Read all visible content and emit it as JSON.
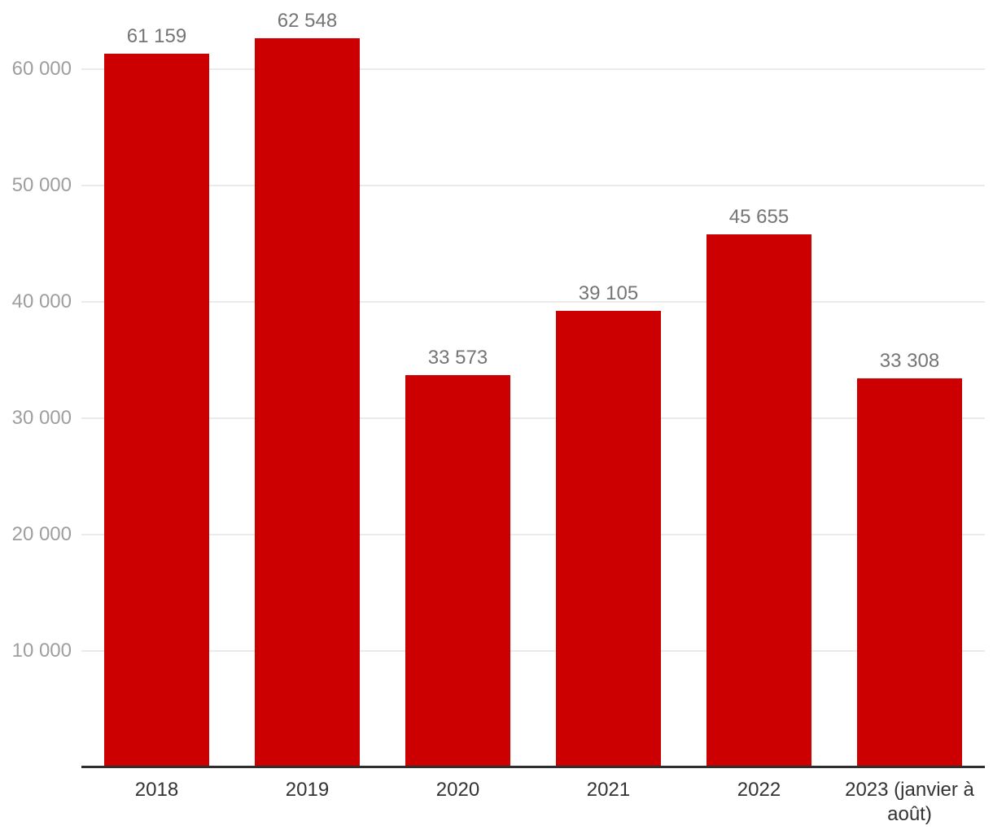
{
  "chart_data": {
    "type": "bar",
    "title": "",
    "categories": [
      "2018",
      "2019",
      "2020",
      "2021",
      "2022",
      "2023 (janvier à août)"
    ],
    "values": [
      61159,
      62548,
      33573,
      39105,
      45655,
      33308
    ],
    "value_labels": [
      "61 159",
      "62 548",
      "33 573",
      "39 105",
      "45 655",
      "33 308"
    ],
    "series_name": "",
    "xlabel": "",
    "ylabel": "",
    "y_ticks": [
      10000,
      20000,
      30000,
      40000,
      50000,
      60000
    ],
    "y_tick_labels": [
      "10 000",
      "20 000",
      "30 000",
      "40 000",
      "50 000",
      "60 000"
    ],
    "ylim": [
      0,
      66000
    ],
    "grid": "horizontal-only",
    "legend_position": "none",
    "colors": {
      "bar": "#cc0000",
      "gridline": "#ebebeb",
      "axis_line": "#2e2e2e",
      "value_label": "#757575",
      "y_tick_label": "#9e9e9e",
      "x_tick_label": "#333333",
      "background": "#ffffff"
    }
  }
}
